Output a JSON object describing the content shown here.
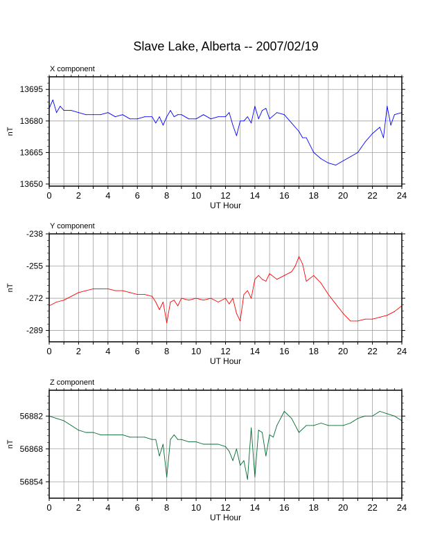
{
  "title": "Slave Lake, Alberta -- 2007/02/19",
  "colors": {
    "x": "#0000ff",
    "y": "#ff0000",
    "z": "#006a2e",
    "grid": "#a0a0a0",
    "axis": "#000000"
  },
  "chart_data": [
    {
      "type": "line",
      "panel_title": "X component",
      "xlabel": "UT Hour",
      "ylabel": "nT",
      "xlim": [
        0,
        24
      ],
      "ylim": [
        13649,
        13701
      ],
      "x_ticks": [
        "0",
        "2",
        "4",
        "6",
        "8",
        "10",
        "12",
        "14",
        "16",
        "18",
        "20",
        "22",
        "24"
      ],
      "y_ticks": [
        "13650",
        "13665",
        "13680",
        "13695"
      ],
      "y_tick_values": [
        13650,
        13665,
        13680,
        13695
      ],
      "grid": true,
      "series": [
        {
          "color": "#0000ff",
          "x": [
            0,
            0.25,
            0.5,
            0.75,
            1,
            1.5,
            2,
            2.5,
            3,
            3.5,
            4,
            4.5,
            5,
            5.5,
            6,
            6.5,
            7,
            7.25,
            7.5,
            7.75,
            8,
            8.25,
            8.5,
            8.75,
            9,
            9.5,
            10,
            10.5,
            11,
            11.5,
            12,
            12.25,
            12.5,
            12.75,
            13,
            13.25,
            13.5,
            13.75,
            14,
            14.25,
            14.5,
            14.75,
            15,
            15.5,
            16,
            16.5,
            17,
            17.25,
            17.5,
            18,
            18.5,
            19,
            19.5,
            20,
            20.5,
            21,
            21.5,
            22,
            22.5,
            22.75,
            23,
            23.25,
            23.5,
            24
          ],
          "values": [
            13686,
            13690,
            13684,
            13687,
            13685,
            13685,
            13684,
            13683,
            13683,
            13683,
            13684,
            13682,
            13683,
            13681,
            13681,
            13682,
            13682,
            13679,
            13682,
            13678,
            13682,
            13685,
            13682,
            13683,
            13683,
            13681,
            13681,
            13683,
            13681,
            13682,
            13682,
            13684,
            13678,
            13673,
            13680,
            13680,
            13682,
            13679,
            13687,
            13681,
            13685,
            13686,
            13681,
            13684,
            13683,
            13679,
            13675,
            13672,
            13672,
            13665,
            13662,
            13660,
            13659,
            13661,
            13663,
            13665,
            13670,
            13674,
            13677,
            13672,
            13687,
            13678,
            13683,
            13684
          ]
        }
      ]
    },
    {
      "type": "line",
      "panel_title": "Y component",
      "xlabel": "UT Hour",
      "ylabel": "nT",
      "xlim": [
        0,
        24
      ],
      "ylim": [
        -295,
        -238
      ],
      "x_ticks": [
        "0",
        "2",
        "4",
        "6",
        "8",
        "10",
        "12",
        "14",
        "16",
        "18",
        "20",
        "22",
        "24"
      ],
      "y_ticks": [
        "-238",
        "-255",
        "-272",
        "-289"
      ],
      "y_tick_values": [
        -238,
        -255,
        -272,
        -289
      ],
      "grid": true,
      "series": [
        {
          "color": "#ff0000",
          "x": [
            0,
            0.5,
            1,
            1.5,
            2,
            2.5,
            3,
            3.5,
            4,
            4.5,
            5,
            5.5,
            6,
            6.5,
            7,
            7.25,
            7.5,
            7.75,
            8,
            8.25,
            8.5,
            8.75,
            9,
            9.5,
            10,
            10.5,
            11,
            11.5,
            12,
            12.25,
            12.5,
            12.75,
            13,
            13.25,
            13.5,
            13.75,
            14,
            14.25,
            14.5,
            14.75,
            15,
            15.5,
            16,
            16.5,
            16.75,
            17,
            17.25,
            17.5,
            18,
            18.5,
            19,
            19.5,
            20,
            20.5,
            21,
            21.5,
            22,
            22.5,
            23,
            23.5,
            24
          ],
          "values": [
            -276,
            -274,
            -273,
            -271,
            -269,
            -268,
            -267,
            -267,
            -267,
            -268,
            -268,
            -269,
            -270,
            -270,
            -271,
            -274,
            -278,
            -274,
            -285,
            -274,
            -273,
            -276,
            -272,
            -273,
            -272,
            -273,
            -272,
            -274,
            -272,
            -275,
            -272,
            -280,
            -284,
            -270,
            -268,
            -272,
            -262,
            -260,
            -262,
            -263,
            -259,
            -262,
            -260,
            -258,
            -255,
            -250,
            -254,
            -263,
            -260,
            -264,
            -270,
            -275,
            -280,
            -284,
            -284,
            -283,
            -283,
            -282,
            -281,
            -279,
            -276
          ]
        }
      ]
    },
    {
      "type": "line",
      "panel_title": "Z component",
      "xlabel": "UT Hour",
      "ylabel": "nT",
      "xlim": [
        0,
        24
      ],
      "ylim": [
        56847,
        56893
      ],
      "x_ticks": [
        "0",
        "2",
        "4",
        "6",
        "8",
        "10",
        "12",
        "14",
        "16",
        "18",
        "20",
        "22",
        "24"
      ],
      "y_ticks": [
        "56854",
        "56868",
        "56882"
      ],
      "y_tick_values": [
        56854,
        56868,
        56882
      ],
      "grid": true,
      "series": [
        {
          "color": "#006a2e",
          "x": [
            0,
            0.5,
            1,
            1.5,
            2,
            2.5,
            3,
            3.5,
            4,
            4.5,
            5,
            5.5,
            6,
            6.5,
            7,
            7.25,
            7.5,
            7.75,
            8,
            8.25,
            8.5,
            8.75,
            9,
            9.5,
            10,
            10.5,
            11,
            11.5,
            12,
            12.25,
            12.5,
            12.75,
            13,
            13.25,
            13.5,
            13.75,
            14,
            14.25,
            14.5,
            14.75,
            15,
            15.25,
            15.5,
            15.75,
            16,
            16.5,
            17,
            17.5,
            18,
            18.5,
            19,
            19.5,
            20,
            20.5,
            21,
            21.5,
            22,
            22.5,
            23,
            23.5,
            24
          ],
          "values": [
            56882,
            56881,
            56880,
            56878,
            56876,
            56875,
            56875,
            56874,
            56874,
            56874,
            56874,
            56873,
            56873,
            56873,
            56872,
            56872,
            56865,
            56870,
            56856,
            56872,
            56874,
            56872,
            56872,
            56871,
            56871,
            56870,
            56870,
            56870,
            56869,
            56867,
            56863,
            56868,
            56861,
            56863,
            56855,
            56877,
            56856,
            56876,
            56875,
            56865,
            56874,
            56873,
            56878,
            56881,
            56884,
            56881,
            56875,
            56878,
            56878,
            56879,
            56878,
            56878,
            56878,
            56879,
            56881,
            56882,
            56882,
            56884,
            56883,
            56882,
            56880
          ]
        }
      ]
    }
  ]
}
